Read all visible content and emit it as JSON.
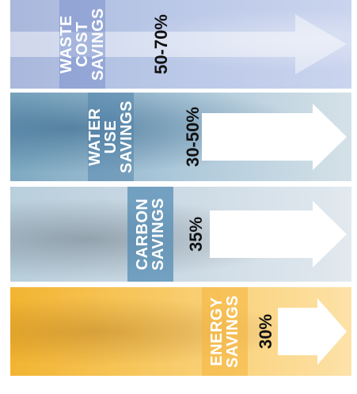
{
  "bands": [
    {
      "id": "waste",
      "label_lines": [
        "WASTE",
        "COST",
        "SAVINGS"
      ],
      "percent": "50-70%",
      "color": "#b8c6e6"
    },
    {
      "id": "water",
      "label_lines": [
        "WATER",
        "USE",
        "SAVINGS"
      ],
      "percent": "30-50%",
      "color": "#7ea9c2"
    },
    {
      "id": "carbon",
      "label_lines": [
        "CARBON",
        "SAVINGS"
      ],
      "percent": "35%",
      "color": "#4e89b2"
    },
    {
      "id": "energy",
      "label_lines": [
        "ENERGY",
        "SAVINGS"
      ],
      "percent": "30%",
      "color": "#f2b431"
    }
  ],
  "icons": {
    "arrow": "right-arrow-icon"
  }
}
